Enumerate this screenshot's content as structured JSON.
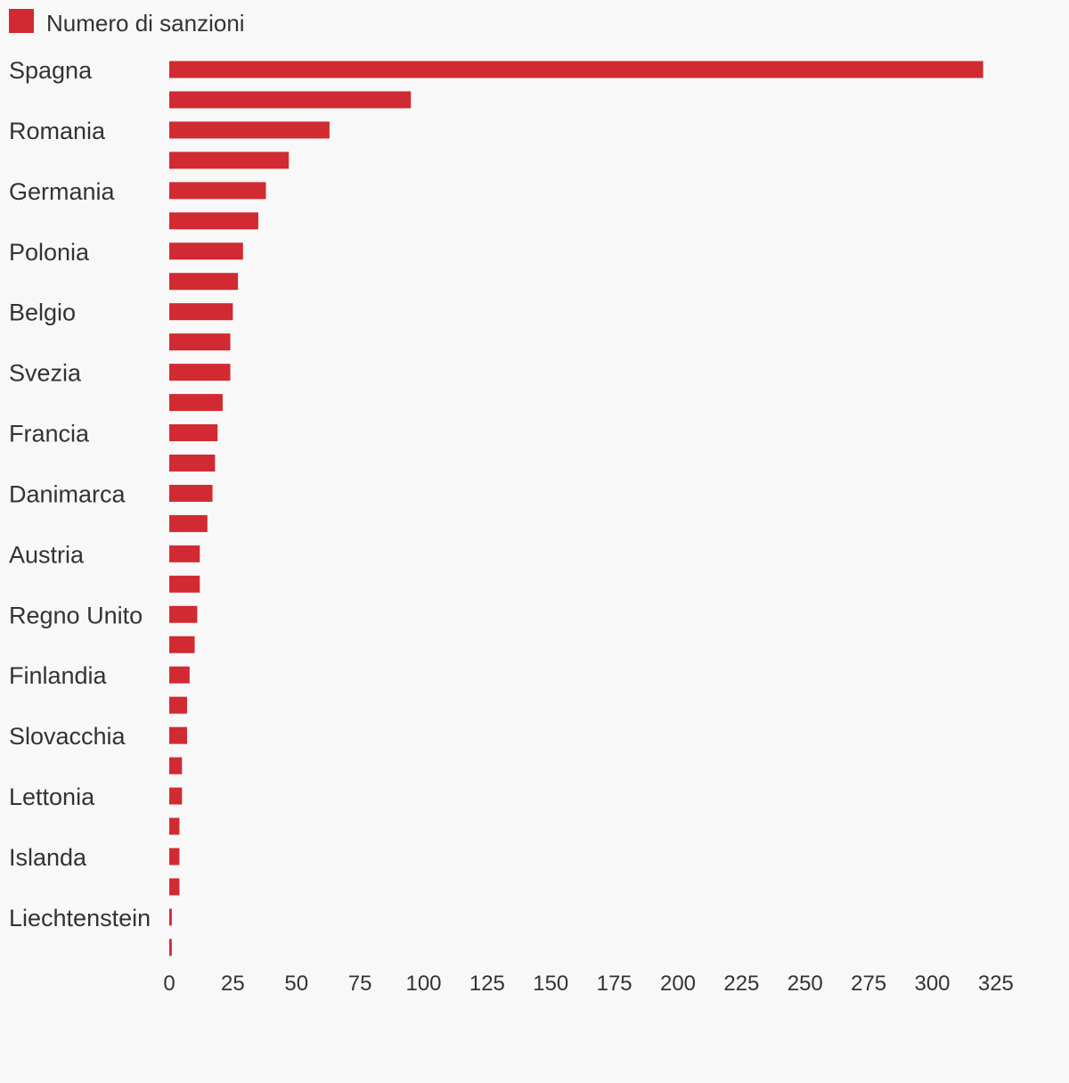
{
  "chart_data": {
    "type": "bar",
    "orientation": "horizontal",
    "legend": {
      "label": "Numero di sanzioni",
      "position": "top-left"
    },
    "categories": [
      "Spagna",
      "",
      "Romania",
      "",
      "Germania",
      "",
      "Polonia",
      "",
      "Belgio",
      "",
      "Svezia",
      "",
      "Francia",
      "",
      "Danimarca",
      "",
      "Austria",
      "",
      "Regno Unito",
      "",
      "Finlandia",
      "",
      "Slovacchia",
      "",
      "Lettonia",
      "",
      "Islanda",
      "",
      "Liechtenstein",
      ""
    ],
    "series": [
      {
        "name": "Numero di sanzioni",
        "color": "#d12a32",
        "values": [
          320,
          95,
          63,
          47,
          38,
          35,
          29,
          27,
          25,
          24,
          24,
          21,
          19,
          18,
          17,
          15,
          12,
          12,
          11,
          10,
          8,
          7,
          7,
          5,
          5,
          4,
          4,
          4,
          1,
          1
        ]
      }
    ],
    "xlim": [
      0,
      325
    ],
    "xticks": [
      0,
      25,
      50,
      75,
      100,
      125,
      150,
      175,
      200,
      225,
      250,
      275,
      300,
      325
    ],
    "xlabel": "",
    "ylabel": "",
    "grid": false
  }
}
